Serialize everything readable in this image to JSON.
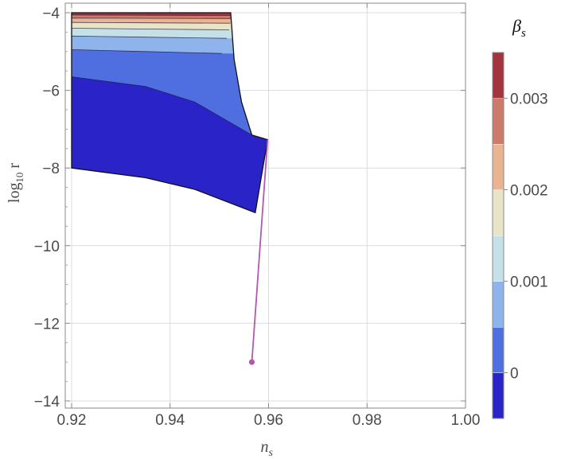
{
  "chart_data": {
    "type": "contour",
    "xlabel": {
      "main": "n",
      "sub": "s"
    },
    "ylabel": {
      "main": "log",
      "sub": "10",
      "tail": " r"
    },
    "xlim": [
      0.92,
      1.0
    ],
    "ylim": [
      -14.2,
      -3.8
    ],
    "x_ticks": [
      0.92,
      0.94,
      0.96,
      0.98,
      1.0
    ],
    "x_tick_labels": [
      "0.92",
      "0.94",
      "0.96",
      "0.98",
      "1.00"
    ],
    "y_ticks": [
      -4,
      -6,
      -8,
      -10,
      -12,
      -14
    ],
    "y_tick_labels": [
      "−4",
      "−6",
      "−8",
      "−10",
      "−12",
      "−14"
    ],
    "grid": true,
    "region": {
      "left_x": 0.92,
      "top_y": -4.0,
      "top_right_x": 0.9523,
      "kink": [
        0.9566,
        -7.15
      ],
      "tip": [
        0.9598,
        -7.27
      ],
      "lower_tip": [
        0.9573,
        -9.15
      ],
      "bottom_left": [
        0.92,
        -8.0
      ]
    },
    "bands": [
      {
        "level": -0.0005,
        "color": "#2a24c8",
        "upper": [
          [
            0.92,
            -5.65
          ],
          [
            0.935,
            -5.9
          ],
          [
            0.945,
            -6.3
          ],
          [
            0.9566,
            -7.15
          ]
        ]
      },
      {
        "level": 0.0,
        "color": "#4f6fe0",
        "upper": [
          [
            0.92,
            -4.95
          ],
          [
            0.935,
            -5.0
          ],
          [
            0.9505,
            -5.05
          ]
        ]
      },
      {
        "level": 0.0005,
        "color": "#8fb4ec",
        "upper": [
          [
            0.92,
            -4.6
          ],
          [
            0.935,
            -4.63
          ],
          [
            0.9515,
            -4.66
          ]
        ]
      },
      {
        "level": 0.001,
        "color": "#c5e0e6",
        "upper": [
          [
            0.92,
            -4.4
          ],
          [
            0.935,
            -4.42
          ],
          [
            0.952,
            -4.44
          ]
        ]
      },
      {
        "level": 0.0015,
        "color": "#e8e4c8",
        "upper": [
          [
            0.92,
            -4.25
          ],
          [
            0.935,
            -4.26
          ],
          [
            0.9522,
            -4.27
          ]
        ]
      },
      {
        "level": 0.002,
        "color": "#e8b491",
        "upper": [
          [
            0.92,
            -4.14
          ],
          [
            0.9523,
            -4.15
          ]
        ]
      },
      {
        "level": 0.0025,
        "color": "#cc7a6c",
        "upper": [
          [
            0.92,
            -4.06
          ],
          [
            0.9523,
            -4.07
          ]
        ]
      },
      {
        "level": 0.003,
        "color": "#a3333f",
        "upper": [
          [
            0.92,
            -4.0
          ],
          [
            0.9523,
            -4.0
          ]
        ]
      }
    ],
    "line": {
      "color": "#b158b0",
      "points": [
        [
          0.9598,
          -7.27
        ],
        [
          0.9566,
          -13.0
        ]
      ],
      "end_marker": [
        0.9566,
        -13.0
      ]
    },
    "colorbar": {
      "title": "β",
      "title_sub": "s",
      "range": [
        -0.0005,
        0.0035
      ],
      "bins": [
        {
          "from": -0.0005,
          "to": 0.0,
          "color": "#2a24c8"
        },
        {
          "from": 0.0,
          "to": 0.0005,
          "color": "#4f6fe0"
        },
        {
          "from": 0.0005,
          "to": 0.001,
          "color": "#8fb4ec"
        },
        {
          "from": 0.001,
          "to": 0.0015,
          "color": "#c5e0e6"
        },
        {
          "from": 0.0015,
          "to": 0.002,
          "color": "#e8e4c8"
        },
        {
          "from": 0.002,
          "to": 0.0025,
          "color": "#e8b491"
        },
        {
          "from": 0.0025,
          "to": 0.003,
          "color": "#cc7a6c"
        },
        {
          "from": 0.003,
          "to": 0.0035,
          "color": "#a3333f"
        }
      ],
      "ticks": [
        0,
        0.001,
        0.002,
        0.003
      ],
      "tick_labels": [
        "0",
        "0.001",
        "0.002",
        "0.003"
      ]
    }
  }
}
